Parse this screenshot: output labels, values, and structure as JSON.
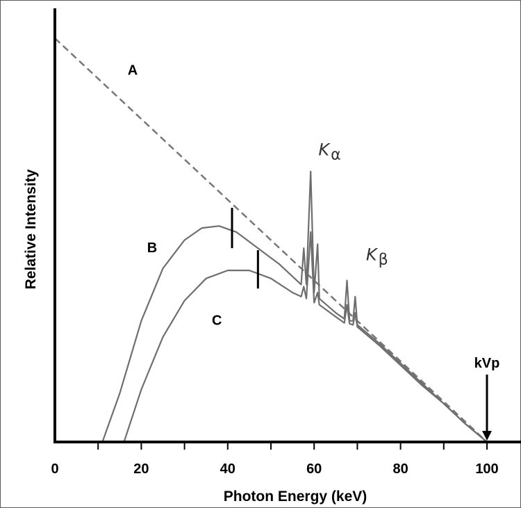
{
  "chart_data": {
    "type": "line",
    "title": "",
    "xlabel": "Photon Energy (keV)",
    "ylabel": "Relative Intensity",
    "xlim": [
      0,
      110
    ],
    "ylim": [
      0,
      100
    ],
    "xticks": [
      0,
      20,
      40,
      60,
      80,
      100
    ],
    "xtick_labels": [
      "0",
      "20",
      "40",
      "60",
      "80",
      "100"
    ],
    "grid": false,
    "series": [
      {
        "name": "A",
        "style": "dashed",
        "color": "#777777",
        "points": [
          [
            0,
            100
          ],
          [
            100,
            0
          ]
        ]
      },
      {
        "name": "B",
        "style": "solid",
        "color": "#6e6e6e",
        "points": [
          [
            11,
            0
          ],
          [
            15,
            12
          ],
          [
            20,
            30
          ],
          [
            25,
            43
          ],
          [
            30,
            50
          ],
          [
            34,
            53
          ],
          [
            38,
            53.5
          ],
          [
            42,
            52
          ],
          [
            47,
            48
          ],
          [
            52,
            44
          ],
          [
            57,
            39
          ],
          [
            57.6,
            48
          ],
          [
            58.2,
            39
          ],
          [
            59.2,
            67
          ],
          [
            60,
            37
          ],
          [
            60.8,
            49
          ],
          [
            61.2,
            35.5
          ],
          [
            65,
            32
          ],
          [
            67,
            30.5
          ],
          [
            67.6,
            40
          ],
          [
            68.2,
            30
          ],
          [
            69,
            30
          ],
          [
            69.5,
            36
          ],
          [
            70,
            29
          ],
          [
            75,
            24.5
          ],
          [
            80,
            19.5
          ],
          [
            85,
            14.5
          ],
          [
            90,
            9.5
          ],
          [
            95,
            4.5
          ],
          [
            100,
            0
          ]
        ]
      },
      {
        "name": "C",
        "style": "solid",
        "color": "#6e6e6e",
        "points": [
          [
            16,
            0
          ],
          [
            20,
            13
          ],
          [
            25,
            26
          ],
          [
            30,
            35
          ],
          [
            35,
            40.5
          ],
          [
            40,
            42.5
          ],
          [
            45,
            42.5
          ],
          [
            50,
            40.5
          ],
          [
            55,
            37
          ],
          [
            57,
            36
          ],
          [
            57.6,
            38.5
          ],
          [
            58.2,
            35.5
          ],
          [
            59.2,
            52
          ],
          [
            60,
            34.5
          ],
          [
            60.8,
            37
          ],
          [
            61.2,
            34
          ],
          [
            65,
            31
          ],
          [
            67,
            29.5
          ],
          [
            67.6,
            34
          ],
          [
            68.2,
            29.3
          ],
          [
            69,
            29
          ],
          [
            69.5,
            32
          ],
          [
            70,
            28.5
          ],
          [
            75,
            24
          ],
          [
            80,
            19
          ],
          [
            85,
            14
          ],
          [
            90,
            9.5
          ],
          [
            95,
            4.5
          ],
          [
            100,
            0
          ]
        ]
      }
    ],
    "annotations": {
      "curve_labels": [
        {
          "text": "A",
          "x": 18,
          "y": 91
        },
        {
          "text": "B",
          "x": 22.5,
          "y": 47
        },
        {
          "text": "C",
          "x": 37.5,
          "y": 29
        }
      ],
      "k_alpha": {
        "main": "K",
        "sub": "α",
        "x": 61,
        "y": 71
      },
      "k_beta": {
        "main": "K",
        "sub": "β",
        "x": 72,
        "y": 45
      },
      "kvp": {
        "text": "kVp",
        "x": 100,
        "arrow_from_y": 16,
        "arrow_to_y": 0
      },
      "peak_markers": [
        {
          "curve": "B",
          "x": 41,
          "y_from": 48,
          "y_to": 58
        },
        {
          "curve": "C",
          "x": 47,
          "y_from": 38,
          "y_to": 47.5
        }
      ]
    }
  }
}
